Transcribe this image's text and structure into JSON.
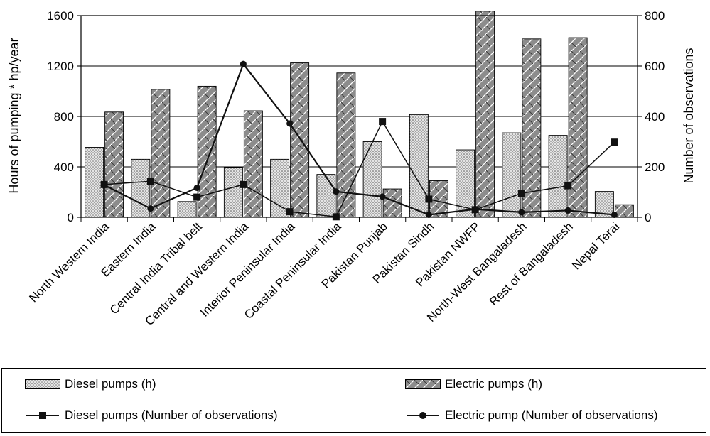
{
  "chart_data": {
    "type": "bar",
    "title": "",
    "ylabel": "Hours of pumping * hp/year",
    "y2label": "Number of observations",
    "ylim": [
      0,
      1600
    ],
    "y2lim": [
      0,
      800
    ],
    "yticks": [
      "0",
      "400",
      "800",
      "1200",
      "1600"
    ],
    "y2ticks": [
      "0",
      "200",
      "400",
      "600",
      "800"
    ],
    "grid": true,
    "legend_position": "bottom",
    "categories": [
      "North Western India",
      "Eastern India",
      "Central India Tribal belt",
      "Central and Western India",
      "Interior Peninsular India",
      "Coastal Peninsular India",
      "Pakistan Punjab",
      "Pakistan Sindh",
      "Pakistan NWFP",
      "North-West Bangaladesh",
      "Rest of Bangaladesh",
      "Nepal Terai"
    ],
    "series": [
      {
        "name": "Diesel pumps (h)",
        "kind": "bar",
        "axis": "left",
        "values": [
          555,
          460,
          125,
          395,
          460,
          340,
          600,
          815,
          535,
          670,
          650,
          205
        ]
      },
      {
        "name": "Electric pumps (h)",
        "kind": "bar",
        "axis": "left",
        "values": [
          835,
          1015,
          1040,
          845,
          1225,
          1145,
          225,
          290,
          1635,
          1415,
          1425,
          100
        ]
      },
      {
        "name": "Diesel pumps (Number of observations)",
        "kind": "line",
        "axis": "right",
        "marker": "square",
        "values": [
          130,
          143,
          80,
          130,
          22,
          2,
          380,
          72,
          30,
          95,
          125,
          298
        ]
      },
      {
        "name": "Electric pump (Number of observations)",
        "kind": "line",
        "axis": "right",
        "marker": "circle",
        "values": [
          128,
          35,
          117,
          608,
          372,
          102,
          82,
          10,
          32,
          20,
          27,
          10
        ]
      }
    ]
  },
  "colors": {
    "diesel_bar": "#d8d8d8",
    "electric_bar": "#909090",
    "lines": "#111111",
    "grid": "#000000"
  }
}
